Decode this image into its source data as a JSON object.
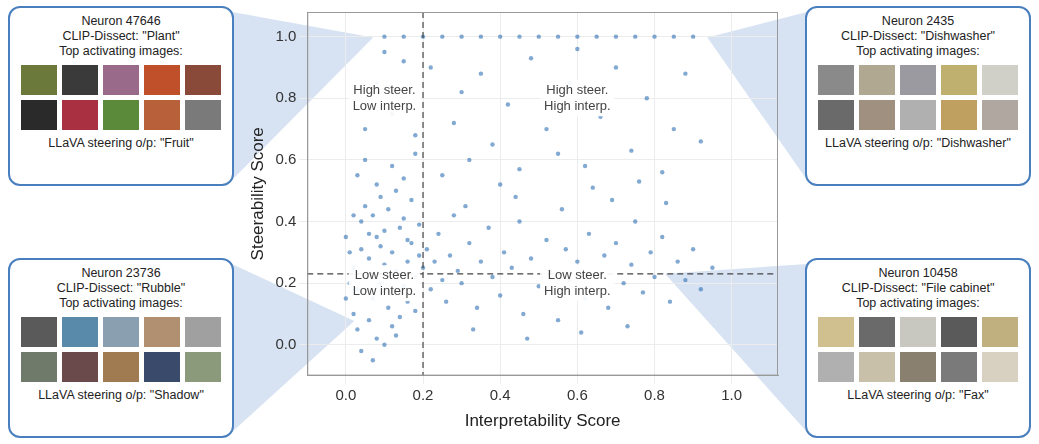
{
  "chart_data": {
    "type": "scatter",
    "x_label": "Interpretability Score",
    "y_label": "Steerability Score",
    "color": "#2f6fb3",
    "marker": "circle",
    "grid": true,
    "xlim": [
      -0.1,
      1.12
    ],
    "ylim": [
      -0.1,
      1.08
    ],
    "xticks": [
      {
        "value": 0,
        "label": "0.0"
      },
      0.2,
      0.4,
      0.6,
      0.8,
      {
        "value": 1,
        "label": "1.0"
      }
    ],
    "yticks": [
      {
        "value": 0,
        "label": "0.0"
      },
      0.2,
      0.4,
      0.6,
      0.8,
      {
        "value": 1,
        "label": "1.0"
      }
    ],
    "vlines": [
      0.2
    ],
    "hlines": [
      0.23
    ],
    "annotations": [
      {
        "lines": [
          "High steer.",
          "Low interp."
        ],
        "x": 0.1,
        "y": 0.8
      },
      {
        "lines": [
          "High steer.",
          "High interp."
        ],
        "x": 0.6,
        "y": 0.8
      },
      {
        "lines": [
          "Low steer.",
          "Low interp."
        ],
        "x": 0.1,
        "y": 0.2
      },
      {
        "lines": [
          "Low steer.",
          "High interp."
        ],
        "x": 0.6,
        "y": 0.2
      }
    ],
    "x": [
      0.02,
      0.03,
      0.04,
      0.05,
      0.06,
      0.07,
      0.08,
      0.09,
      0.1,
      0.11,
      0.12,
      0.13,
      0.14,
      0.15,
      0.16,
      0.17,
      0.18,
      0.19,
      0.02,
      0.03,
      0.04,
      0.05,
      0.06,
      0.07,
      0.08,
      0.09,
      0.1,
      0.11,
      0.12,
      0.13,
      0.14,
      0.15,
      0.16,
      0.17,
      0.18,
      0.19,
      0.01,
      0.01,
      0.0,
      0.0,
      0.03,
      0.05,
      0.08,
      0.12,
      0.15,
      0.18,
      0.04,
      0.07,
      0.1,
      0.13,
      0.02,
      0.06,
      0.09,
      0.11,
      0.14,
      0.16,
      0.2,
      0.21,
      0.22,
      0.23,
      0.24,
      0.25,
      0.26,
      0.27,
      0.28,
      0.29,
      0.3,
      0.32,
      0.34,
      0.35,
      0.37,
      0.38,
      0.4,
      0.41,
      0.43,
      0.45,
      0.46,
      0.48,
      0.5,
      0.52,
      0.53,
      0.55,
      0.57,
      0.58,
      0.6,
      0.62,
      0.63,
      0.65,
      0.67,
      0.68,
      0.7,
      0.72,
      0.74,
      0.75,
      0.77,
      0.79,
      0.8,
      0.82,
      0.84,
      0.86,
      0.88,
      0.9,
      0.92,
      0.95,
      0.33,
      0.47,
      0.61,
      0.73,
      0.31,
      0.44,
      0.56,
      0.69,
      0.83,
      0.05,
      0.08,
      0.12,
      0.15,
      0.18,
      0.1,
      0.25,
      0.28,
      0.32,
      0.35,
      0.38,
      0.42,
      0.45,
      0.48,
      0.52,
      0.55,
      0.58,
      0.62,
      0.66,
      0.7,
      0.74,
      0.78,
      0.82,
      0.85,
      0.88,
      0.92,
      0.4,
      0.3,
      0.6,
      0.22,
      0.64,
      0.76,
      0.1,
      0.15,
      0.2,
      0.25,
      0.3,
      0.35,
      0.4,
      0.45,
      0.5,
      0.55,
      0.6,
      0.65,
      0.7,
      0.75,
      0.8,
      0.85,
      0.9
    ],
    "values": [
      0.25,
      0.18,
      0.31,
      0.22,
      0.28,
      0.15,
      0.35,
      0.2,
      0.26,
      0.12,
      0.3,
      0.24,
      0.38,
      0.19,
      0.27,
      0.33,
      0.22,
      0.29,
      0.1,
      0.05,
      0.4,
      0.45,
      0.08,
      0.42,
      0.02,
      0.48,
      0.37,
      0.44,
      0.06,
      0.5,
      0.09,
      0.41,
      0.14,
      0.47,
      0.11,
      0.39,
      0.3,
      0.2,
      0.15,
      0.35,
      0.55,
      0.6,
      0.52,
      0.58,
      0.54,
      0.62,
      -0.02,
      -0.05,
      0.0,
      0.03,
      0.42,
      0.36,
      0.32,
      0.23,
      0.17,
      0.34,
      0.25,
      0.31,
      0.18,
      0.27,
      0.36,
      0.21,
      0.14,
      0.29,
      0.42,
      0.24,
      0.2,
      0.33,
      0.12,
      0.27,
      0.38,
      0.22,
      0.16,
      0.3,
      0.25,
      0.4,
      0.1,
      0.28,
      0.19,
      0.34,
      0.24,
      0.08,
      0.31,
      0.21,
      0.27,
      0.15,
      0.36,
      0.23,
      0.29,
      0.12,
      0.33,
      0.2,
      0.26,
      0.4,
      0.17,
      0.3,
      0.22,
      0.35,
      0.14,
      0.27,
      0.21,
      0.31,
      0.18,
      0.25,
      0.05,
      0.02,
      0.04,
      0.06,
      0.45,
      0.48,
      0.44,
      0.47,
      0.46,
      0.7,
      0.85,
      0.75,
      0.92,
      0.68,
      0.95,
      0.55,
      0.72,
      0.6,
      0.88,
      0.65,
      0.78,
      0.57,
      0.93,
      0.7,
      0.62,
      0.85,
      0.58,
      0.74,
      0.9,
      0.63,
      0.8,
      0.56,
      0.7,
      0.88,
      0.66,
      0.52,
      0.82,
      0.96,
      0.9,
      0.51,
      0.53,
      1.0,
      1.0,
      1.0,
      1.0,
      1.0,
      1.0,
      1.0,
      1.0,
      1.0,
      1.0,
      1.0,
      1.0,
      1.0,
      1.0,
      1.0,
      1.0,
      1.0
    ]
  },
  "panels": [
    {
      "neuron": "Neuron 47646",
      "clip_dissect": "CLIP-Dissect: \"Plant\"",
      "images_caption": "Top activating images:",
      "steering": "LLaVA steering o/p: \"Fruit\""
    },
    {
      "neuron": "Neuron 23736",
      "clip_dissect": "CLIP-Dissect: \"Rubble\"",
      "images_caption": "Top activating images:",
      "steering": "LLaVA steering o/p: \"Shadow\""
    },
    {
      "neuron": "Neuron 2435",
      "clip_dissect": "CLIP-Dissect: \"Dishwasher\"",
      "images_caption": "Top activating images:",
      "steering": "LLaVA steering o/p: \"Dishwasher\""
    },
    {
      "neuron": "Neuron 10458",
      "clip_dissect": "CLIP-Dissect: \"File cabinet\"",
      "images_caption": "Top activating images:",
      "steering": "LLaVA steering o/p: \"Fax\""
    }
  ]
}
